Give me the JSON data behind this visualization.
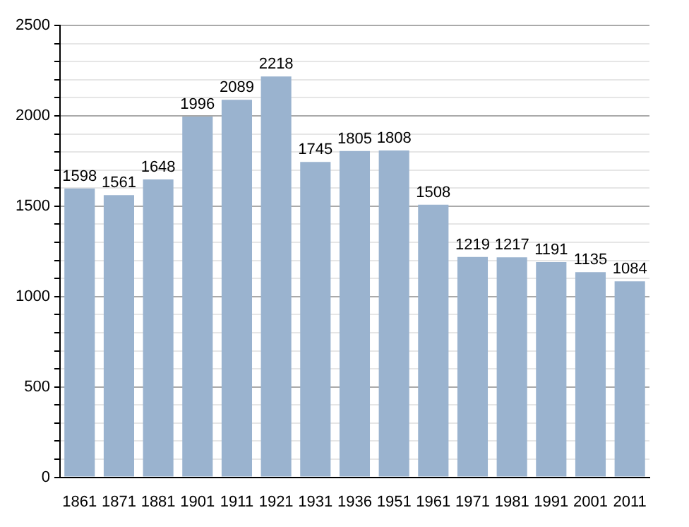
{
  "chart_data": {
    "type": "bar",
    "categories": [
      "1861",
      "1871",
      "1881",
      "1901",
      "1911",
      "1921",
      "1931",
      "1936",
      "1951",
      "1961",
      "1971",
      "1981",
      "1991",
      "2001",
      "2011"
    ],
    "values": [
      1598,
      1561,
      1648,
      1996,
      2089,
      2218,
      1745,
      1805,
      1808,
      1508,
      1219,
      1217,
      1191,
      1135,
      1084
    ],
    "color": "#9ab3cf",
    "ylim": [
      0,
      2500
    ],
    "yticks": [
      0,
      {
        "value": 100,
        "label": null
      },
      {
        "value": 200,
        "label": null
      },
      {
        "value": 300,
        "label": null
      },
      {
        "value": 400,
        "label": null
      },
      500,
      {
        "value": 600,
        "label": null
      },
      {
        "value": 700,
        "label": null
      },
      {
        "value": 800,
        "label": null
      },
      {
        "value": 900,
        "label": null
      },
      1000,
      {
        "value": 1100,
        "label": null
      },
      {
        "value": 1200,
        "label": null
      },
      {
        "value": 1300,
        "label": null
      },
      {
        "value": 1400,
        "label": null
      },
      1500,
      {
        "value": 1600,
        "label": null
      },
      {
        "value": 1700,
        "label": null
      },
      {
        "value": 1800,
        "label": null
      },
      {
        "value": 1900,
        "label": null
      },
      2000,
      {
        "value": 2100,
        "label": null
      },
      {
        "value": 2200,
        "label": null
      },
      {
        "value": 2300,
        "label": null
      },
      {
        "value": 2400,
        "label": null
      },
      2500
    ],
    "grid": "y",
    "data_labels": true
  }
}
